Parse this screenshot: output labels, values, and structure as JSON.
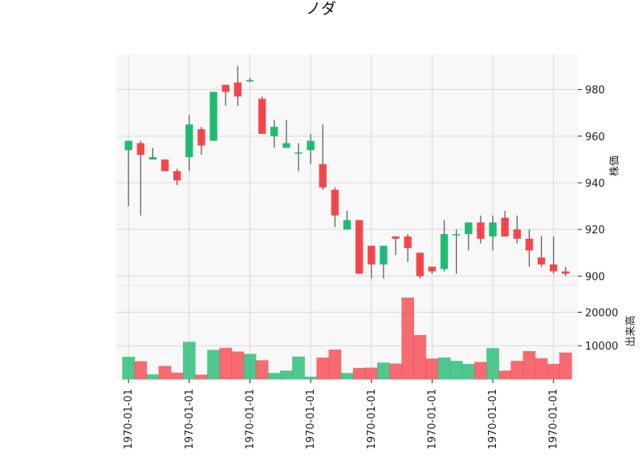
{
  "chart_data": {
    "type": "candlestick",
    "title": "ノダ",
    "colors": {
      "up": "#16b86c",
      "down": "#f53d45",
      "wick": "#555555",
      "panel_bg": "#f8f8f8",
      "grid": "#d9d9d9"
    },
    "price_panel": {
      "ylabel": "株価",
      "ylim": [
        896,
        995
      ],
      "yticks": [
        900,
        920,
        940,
        960,
        980
      ],
      "grid": true
    },
    "volume_panel": {
      "ylabel": "出来高",
      "ylim": [
        0,
        28000
      ],
      "yticks": [
        10000,
        20000
      ],
      "yticklabels": [
        "10000",
        "20000"
      ],
      "grid": true
    },
    "xticklabels": [
      "1970-01-01",
      "1970-01-01",
      "1970-01-01",
      "1970-01-01",
      "1970-01-01",
      "1970-01-01",
      "1970-01-01",
      "1970-01-01"
    ],
    "xtick_indices": [
      0,
      5,
      10,
      15,
      20,
      25,
      30,
      35
    ],
    "candles": [
      {
        "open": 954,
        "high": 958,
        "low": 930,
        "close": 958,
        "volume": 6600
      },
      {
        "open": 957,
        "high": 958,
        "low": 926,
        "close": 952,
        "volume": 5300
      },
      {
        "open": 950,
        "high": 955,
        "low": 950,
        "close": 951,
        "volume": 1400
      },
      {
        "open": 950,
        "high": 950,
        "low": 945,
        "close": 945,
        "volume": 3900
      },
      {
        "open": 945,
        "high": 946,
        "low": 939,
        "close": 941,
        "volume": 1900
      },
      {
        "open": 951,
        "high": 969,
        "low": 945,
        "close": 965,
        "volume": 11100
      },
      {
        "open": 963,
        "high": 964,
        "low": 952,
        "close": 956,
        "volume": 1300
      },
      {
        "open": 958,
        "high": 979,
        "low": 958,
        "close": 979,
        "volume": 8700
      },
      {
        "open": 982,
        "high": 982,
        "low": 973,
        "close": 979,
        "volume": 9300
      },
      {
        "open": 983,
        "high": 990,
        "low": 973,
        "close": 977,
        "volume": 8200
      },
      {
        "open": 984,
        "high": 985,
        "low": 983,
        "close": 984,
        "volume": 7500
      },
      {
        "open": 976,
        "high": 977,
        "low": 961,
        "close": 961,
        "volume": 5600
      },
      {
        "open": 960,
        "high": 967,
        "low": 955,
        "close": 964,
        "volume": 1800
      },
      {
        "open": 955,
        "high": 967,
        "low": 955,
        "close": 957,
        "volume": 2500
      },
      {
        "open": 953,
        "high": 957,
        "low": 945,
        "close": 953,
        "volume": 6700
      },
      {
        "open": 954,
        "high": 961,
        "low": 948,
        "close": 958,
        "volume": 700
      },
      {
        "open": 948,
        "high": 965,
        "low": 937,
        "close": 938,
        "volume": 6400
      },
      {
        "open": 937,
        "high": 938,
        "low": 921,
        "close": 926,
        "volume": 8800
      },
      {
        "open": 920,
        "high": 928,
        "low": 920,
        "close": 924,
        "volume": 1800
      },
      {
        "open": 924,
        "high": 924,
        "low": 901,
        "close": 901,
        "volume": 3300
      },
      {
        "open": 913,
        "high": 913,
        "low": 899,
        "close": 905,
        "volume": 3400
      },
      {
        "open": 905,
        "high": 913,
        "low": 899,
        "close": 913,
        "volume": 4900
      },
      {
        "open": 917,
        "high": 917,
        "low": 909,
        "close": 916,
        "volume": 4600
      },
      {
        "open": 917,
        "high": 918,
        "low": 906,
        "close": 912,
        "volume": 24300
      },
      {
        "open": 910,
        "high": 910,
        "low": 899,
        "close": 900,
        "volume": 13100
      },
      {
        "open": 904,
        "high": 904,
        "low": 901,
        "close": 902,
        "volume": 6100
      },
      {
        "open": 903,
        "high": 924,
        "low": 902,
        "close": 918,
        "volume": 6400
      },
      {
        "open": 918,
        "high": 920,
        "low": 901,
        "close": 918,
        "volume": 5400
      },
      {
        "open": 918,
        "high": 923,
        "low": 911,
        "close": 923,
        "volume": 4500
      },
      {
        "open": 923,
        "high": 926,
        "low": 914,
        "close": 916,
        "volume": 5100
      },
      {
        "open": 917,
        "high": 926,
        "low": 911,
        "close": 923,
        "volume": 9200
      },
      {
        "open": 925,
        "high": 928,
        "low": 917,
        "close": 917,
        "volume": 2500
      },
      {
        "open": 920,
        "high": 926,
        "low": 914,
        "close": 916,
        "volume": 5400
      },
      {
        "open": 916,
        "high": 920,
        "low": 904,
        "close": 911,
        "volume": 8300
      },
      {
        "open": 908,
        "high": 917,
        "low": 904,
        "close": 905,
        "volume": 6200
      },
      {
        "open": 905,
        "high": 917,
        "low": 901,
        "close": 902,
        "volume": 4500
      },
      {
        "open": 902,
        "high": 904,
        "low": 900,
        "close": 901,
        "volume": 7900
      }
    ]
  }
}
